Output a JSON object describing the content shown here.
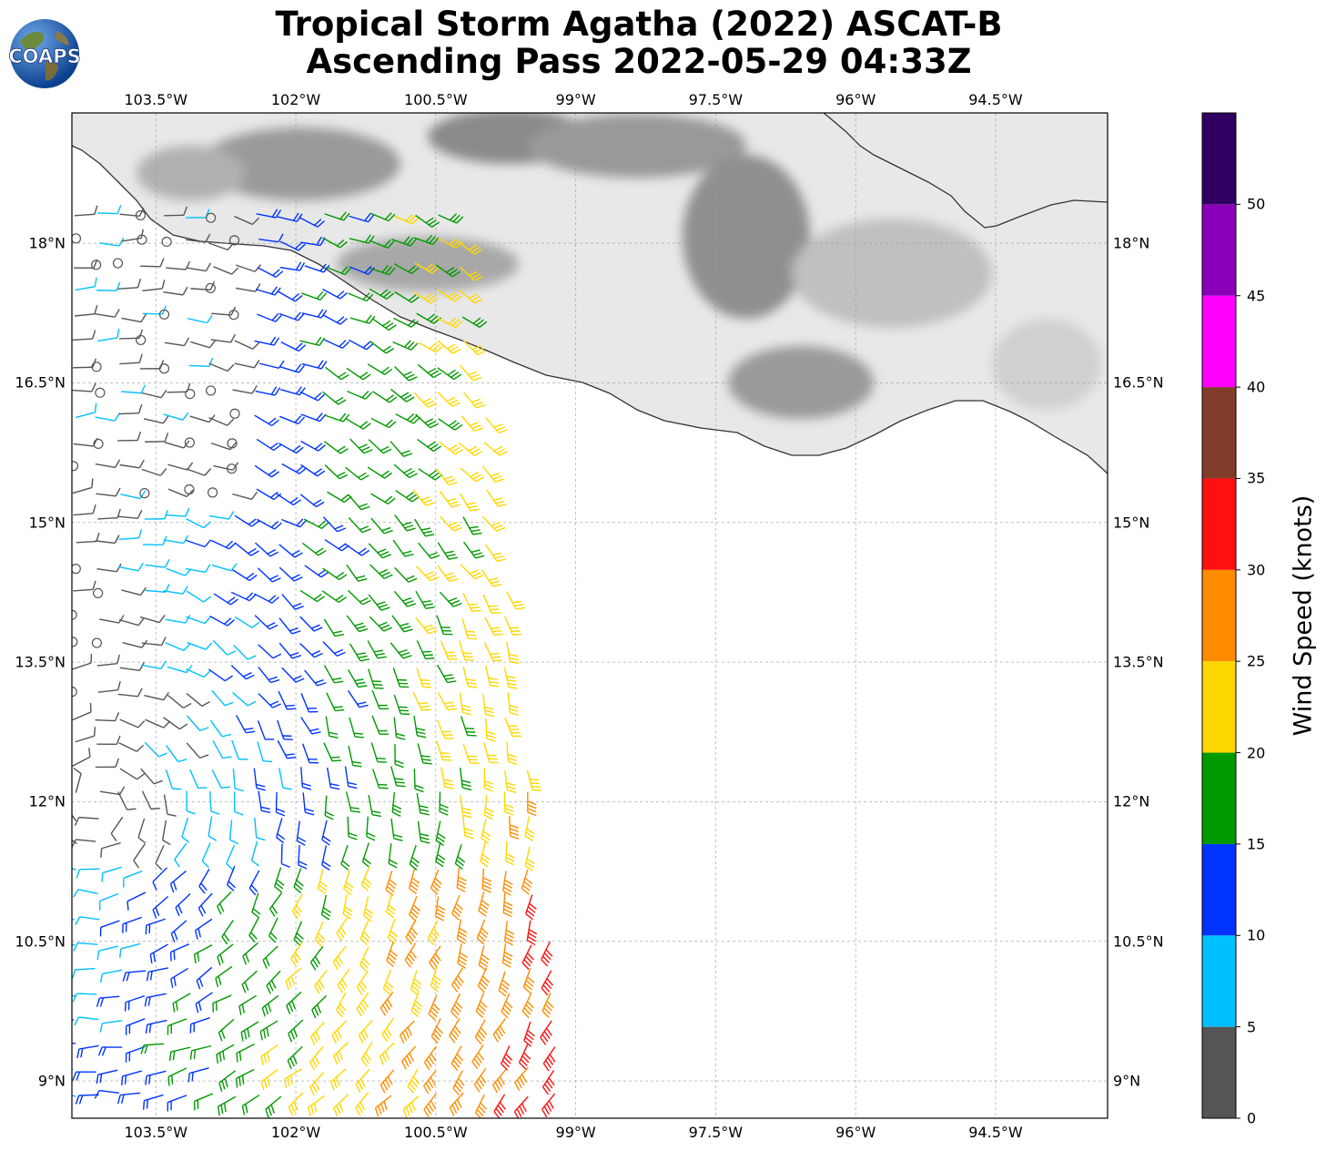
{
  "title": {
    "line1": "Tropical Storm Agatha (2022) ASCAT-B",
    "line2": "Ascending Pass 2022-05-29 04:33Z"
  },
  "logo": {
    "text": "COAPS",
    "icon": "globe-logo-icon"
  },
  "map": {
    "lon_ticks": [
      "103.5°W",
      "102°W",
      "100.5°W",
      "99°W",
      "97.5°W",
      "96°W",
      "94.5°W"
    ],
    "lat_ticks": [
      "18°N",
      "16.5°N",
      "15°N",
      "13.5°N",
      "12°N",
      "10.5°N",
      "9°N"
    ],
    "extent": {
      "lon_min": -104.4,
      "lon_max": -93.3,
      "lat_min": 8.6,
      "lat_max": 19.4
    },
    "gridlines": true,
    "background": "grayscale terrain with coastline"
  },
  "colorbar": {
    "label": "Wind Speed (knots)",
    "ticks": [
      "0",
      "5",
      "10",
      "15",
      "20",
      "25",
      "30",
      "35",
      "40",
      "45",
      "50"
    ],
    "colors": [
      "#555555",
      "#00bfff",
      "#0033ff",
      "#009900",
      "#ffd700",
      "#ff8c00",
      "#ff1010",
      "#803e2a",
      "#ff00ff",
      "#8a00b8",
      "#2f0060"
    ],
    "range": [
      0,
      55
    ]
  }
}
